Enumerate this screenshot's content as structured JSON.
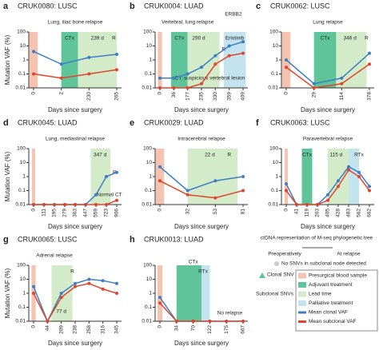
{
  "chart_data": [
    {
      "type": "line",
      "panel": "a",
      "title": "CRUK0080: LUSC",
      "ylabel": "Mutation VAF (%)",
      "xlabel": "Days since surgery",
      "annotations": [
        "Lung, iliac bone relapse",
        "CTx",
        "239 d",
        "R"
      ],
      "categories": [
        "0",
        "2",
        "230",
        "265"
      ],
      "ylog": true,
      "ylim": [
        0.01,
        100
      ],
      "yticks": [
        0.01,
        0.1,
        1,
        10,
        100
      ],
      "series": [
        {
          "color": "#3c7ec6",
          "values": [
            4,
            0.5,
            1.5,
            2.5
          ]
        },
        {
          "color": "#e0452b",
          "values": [
            0.1,
            0.05,
            0.1,
            0.2
          ]
        }
      ]
    },
    {
      "type": "line",
      "panel": "b",
      "title": "CRUK0004: LUAD",
      "xlabel": "Days since surgery",
      "annotations": [
        "Vertebral, lung relapse",
        "CTx",
        "290 d",
        "Erlotinib",
        "ERBB2",
        "CT: suspicious vertebral lesion",
        "R"
      ],
      "categories": [
        "0",
        "36",
        "177",
        "235",
        "330",
        "359",
        "409"
      ],
      "ylog": true,
      "ylim": [
        0.01,
        100
      ],
      "yticks": [
        0.01,
        0.1,
        1,
        10,
        100
      ],
      "series": [
        {
          "color": "#3c7ec6",
          "values": [
            0.05,
            0.05,
            0.1,
            0.3,
            2,
            10,
            20
          ]
        },
        {
          "color": "#e0452b",
          "values": [
            0.01,
            0.01,
            0.01,
            0.02,
            0.5,
            2,
            3
          ]
        }
      ]
    },
    {
      "type": "line",
      "panel": "c",
      "title": "CRUK0062: LUSC",
      "xlabel": "Days since surgery",
      "annotations": [
        "Lung relapse",
        "CTx",
        "346 d",
        "R"
      ],
      "categories": [
        "0",
        "29",
        "114",
        "378"
      ],
      "ylog": true,
      "ylim": [
        0.01,
        100
      ],
      "yticks": [
        0.01,
        0.1,
        1,
        10,
        100
      ],
      "series": [
        {
          "color": "#3c7ec6",
          "values": [
            1,
            0.02,
            0.05,
            3
          ]
        },
        {
          "color": "#e0452b",
          "values": [
            0.3,
            0.01,
            0.02,
            0.5
          ]
        }
      ]
    },
    {
      "type": "line",
      "panel": "d",
      "title": "CRUK0045: LUAD",
      "ylabel": "Mutation VAF (%)",
      "xlabel": "Days since surgery",
      "annotations": [
        "Lung, mediastinal relapse",
        "347 d",
        "R",
        "Normal CT"
      ],
      "categories": [
        "0",
        "111",
        "195",
        "279",
        "363",
        "447",
        "559",
        "723",
        "906"
      ],
      "ylog": true,
      "ylim": [
        0.01,
        100
      ],
      "yticks": [
        0.01,
        0.1,
        1,
        10,
        100
      ],
      "series": [
        {
          "color": "#3c7ec6",
          "values": [
            0.01,
            0.01,
            0.01,
            0.01,
            0.01,
            0.01,
            0.05,
            1,
            2
          ]
        },
        {
          "color": "#e0452b",
          "values": [
            0.01,
            0.01,
            0.01,
            0.01,
            0.01,
            0.01,
            0.01,
            0.01,
            0.02
          ]
        }
      ]
    },
    {
      "type": "line",
      "panel": "e",
      "title": "CRUK0029: LUAD",
      "xlabel": "Days since surgery",
      "annotations": [
        "Intracerebral relapse",
        "22 d",
        "R"
      ],
      "categories": [
        "0",
        "32",
        "53",
        "81"
      ],
      "ylog": true,
      "ylim": [
        0.01,
        100
      ],
      "yticks": [
        0.01,
        0.1,
        1,
        10,
        100
      ],
      "series": [
        {
          "color": "#3c7ec6",
          "values": [
            5,
            0.1,
            0.5,
            1
          ]
        },
        {
          "color": "#e0452b",
          "values": [
            0.5,
            0.05,
            0.03,
            0.1
          ]
        }
      ]
    },
    {
      "type": "line",
      "panel": "f",
      "title": "CRUK0063: LUSC",
      "xlabel": "Days since surgery",
      "annotations": [
        "Paravertebral relapse",
        "CTx",
        "115 d",
        "RTx"
      ],
      "categories": [
        "0",
        "41",
        "119",
        "203",
        "405",
        "428",
        "483",
        "562",
        "662"
      ],
      "ylog": true,
      "ylim": [
        0.01,
        100
      ],
      "yticks": [
        0.01,
        0.1,
        1,
        10,
        100
      ],
      "series": [
        {
          "color": "#3c7ec6",
          "values": [
            0.3,
            0.01,
            0.01,
            0.01,
            0.05,
            0.5,
            5,
            2,
            0.2
          ]
        },
        {
          "color": "#e0452b",
          "values": [
            0.1,
            0.01,
            0.01,
            0.01,
            0.02,
            0.2,
            3,
            1,
            0.1
          ]
        }
      ]
    },
    {
      "type": "line",
      "panel": "g",
      "title": "CRUK0065: LUSC",
      "ylabel": "Mutation VAF (%)",
      "xlabel": "Days since surgery",
      "annotations": [
        "Adrenal relapse",
        "77 d",
        "R"
      ],
      "categories": [
        "0",
        "44",
        "209",
        "238",
        "258",
        "316",
        "345"
      ],
      "ylog": true,
      "ylim": [
        0.01,
        100
      ],
      "yticks": [
        0.01,
        0.1,
        1,
        10,
        100
      ],
      "series": [
        {
          "color": "#3c7ec6",
          "values": [
            3,
            0.01,
            1,
            5,
            10,
            8,
            5
          ]
        },
        {
          "color": "#e0452b",
          "values": [
            1,
            0.01,
            0.5,
            3,
            5,
            2,
            1
          ]
        }
      ]
    },
    {
      "type": "line",
      "panel": "h",
      "title": "CRUK0013: LUAD",
      "xlabel": "Days since surgery",
      "annotations": [
        "CTx",
        "RTx",
        "No relapse"
      ],
      "categories": [
        "0",
        "34",
        "70",
        "122",
        "175",
        "667"
      ],
      "ylog": true,
      "ylim": [
        0.01,
        100
      ],
      "yticks": [
        0.01,
        0.1,
        1,
        10,
        100
      ],
      "series": [
        {
          "color": "#3c7ec6",
          "values": [
            0.5,
            0.01,
            0.01,
            0.01,
            0.01,
            0.01
          ]
        },
        {
          "color": "#e0452b",
          "values": [
            0.2,
            0.01,
            0.01,
            0.01,
            0.01,
            0.01
          ]
        }
      ]
    }
  ],
  "legend": {
    "title": "ctDNA representation of M-seq phylogenetic tree",
    "pre": "Preoperatively",
    "relapse": "At relapse",
    "note": "No SNVs in subclonal node detected",
    "clonal": "Clonal SNV",
    "subclonal": "Subclonal SNVs",
    "items": [
      {
        "name": "Presurgical blood sample",
        "color": "#f6c3b0"
      },
      {
        "name": "Adjuvant treatment",
        "color": "#5fc49a"
      },
      {
        "name": "Lead time",
        "color": "#d3ebc8"
      },
      {
        "name": "Palliative treatment",
        "color": "#c3e4ef"
      },
      {
        "name": "Mean clonal VAF",
        "color": "#3c7ec6"
      },
      {
        "name": "Mean subclonal VAF",
        "color": "#e0452b"
      }
    ]
  }
}
